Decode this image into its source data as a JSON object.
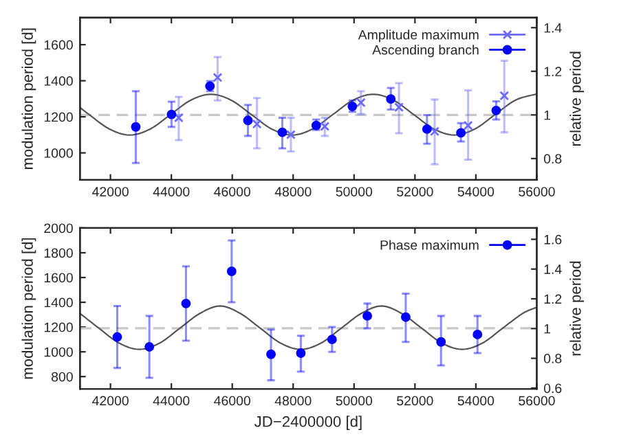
{
  "chart_data": [
    {
      "type": "scatter",
      "ylabel": "modulation period [d]",
      "y2label": "relative period",
      "xlim": [
        41000,
        56000
      ],
      "xticks": [
        42000,
        44000,
        46000,
        48000,
        50000,
        52000,
        54000,
        56000
      ],
      "ylim": [
        850,
        1750
      ],
      "yticks": [
        1000,
        1200,
        1400,
        1600
      ],
      "y2lim": [
        0.702,
        1.446
      ],
      "y2ticks": [
        0.8,
        1,
        1.2,
        1.4
      ],
      "legend": "top right",
      "grid": false,
      "ref_lines": [
        {
          "axis": "y",
          "value": 1210,
          "color": "#c8c8c8",
          "line_style": "dashed"
        }
      ],
      "series": [
        {
          "name": "Amplitude maximum",
          "marker": "cross",
          "color": "#6a6aff",
          "x": [
            44242,
            45519,
            46811,
            47925,
            49039,
            50227,
            51474,
            52647,
            53746,
            54934
          ],
          "values": [
            1195,
            1418,
            1160,
            1101,
            1147,
            1279,
            1253,
            1119,
            1152,
            1317
          ],
          "errors": [
            [
              1071,
              1311
            ],
            [
              1291,
              1532
            ],
            [
              1025,
              1304
            ],
            [
              1008,
              1195
            ],
            [
              1094,
              1195
            ],
            [
              1215,
              1342
            ],
            [
              1109,
              1387
            ],
            [
              937,
              1296
            ],
            [
              962,
              1347
            ],
            [
              1114,
              1511
            ]
          ]
        },
        {
          "name": "Ascending branch",
          "marker": "circle",
          "color": "#0000ff",
          "x": [
            42832,
            44005,
            45267,
            46514,
            47643,
            48757,
            49945,
            51207,
            52395,
            53509,
            54667
          ],
          "values": [
            1144,
            1213,
            1370,
            1180,
            1114,
            1152,
            1258,
            1299,
            1132,
            1111,
            1235
          ],
          "errors": [
            [
              944,
              1342
            ],
            [
              1144,
              1284
            ],
            [
              1342,
              1398
            ],
            [
              1094,
              1266
            ],
            [
              1025,
              1195
            ],
            [
              1127,
              1185
            ],
            [
              1228,
              1291
            ],
            [
              1240,
              1360
            ],
            [
              1051,
              1210
            ],
            [
              1063,
              1165
            ],
            [
              1185,
              1286
            ]
          ]
        },
        {
          "type": "line",
          "color": "#555555",
          "x": [
            41000,
            41303,
            41969,
            42635,
            43301,
            43968,
            44634,
            45300,
            45966,
            46633,
            47299,
            47965,
            48631,
            49298,
            49964,
            50630,
            51296,
            51963,
            52629,
            53295,
            53961,
            54628,
            55294,
            55960,
            56000
          ],
          "values": [
            1251,
            1212,
            1132,
            1099,
            1132,
            1212,
            1292,
            1325,
            1292,
            1212,
            1132,
            1099,
            1132,
            1212,
            1292,
            1325,
            1292,
            1212,
            1132,
            1099,
            1132,
            1212,
            1292,
            1325,
            1325
          ]
        }
      ]
    },
    {
      "type": "scatter",
      "xlabel": "JD−2400000 [d]",
      "ylabel": "modulation period [d]",
      "y2label": "relative period",
      "xlim": [
        41000,
        56000
      ],
      "xticks": [
        42000,
        44000,
        46000,
        48000,
        50000,
        52000,
        54000,
        56000
      ],
      "ylim": [
        700,
        2000
      ],
      "yticks": [
        800,
        1000,
        1200,
        1400,
        1600,
        1800,
        2000
      ],
      "y2lim": [
        0.594,
        1.676
      ],
      "y2ticks": [
        0.6,
        0.8,
        1,
        1.2,
        1.4,
        1.6
      ],
      "legend": "top right",
      "grid": false,
      "ref_lines": [
        {
          "axis": "y",
          "value": 1190,
          "color": "#c8c8c8",
          "line_style": "dashed"
        }
      ],
      "series": [
        {
          "name": "Phase maximum",
          "marker": "circle",
          "color": "#0000ff",
          "x": [
            42223,
            43277,
            44480,
            45980,
            47272,
            48252,
            49277,
            50435,
            51697,
            52856,
            54053
          ],
          "values": [
            1120,
            1040,
            1390,
            1650,
            980,
            990,
            1100,
            1290,
            1280,
            1080,
            1140
          ],
          "errors": [
            [
              870,
              1370
            ],
            [
              790,
              1290
            ],
            [
              1090,
              1690
            ],
            [
              1400,
              1900
            ],
            [
              770,
              1180
            ],
            [
              840,
              1130
            ],
            [
              1000,
              1200
            ],
            [
              1190,
              1390
            ],
            [
              1080,
              1470
            ],
            [
              890,
              1290
            ],
            [
              990,
              1290
            ]
          ]
        },
        {
          "type": "line",
          "color": "#555555",
          "x": [
            41000,
            41625,
            42288,
            42950,
            43612,
            44275,
            44938,
            45600,
            46262,
            46925,
            47588,
            48250,
            48912,
            49575,
            50238,
            50900,
            51562,
            52225,
            52888,
            53550,
            54212,
            54875,
            55538,
            56000
          ],
          "values": [
            1310,
            1190,
            1070,
            1020,
            1070,
            1190,
            1310,
            1370,
            1310,
            1190,
            1070,
            1020,
            1070,
            1190,
            1310,
            1370,
            1310,
            1190,
            1070,
            1020,
            1070,
            1190,
            1310,
            1360
          ]
        }
      ]
    }
  ]
}
